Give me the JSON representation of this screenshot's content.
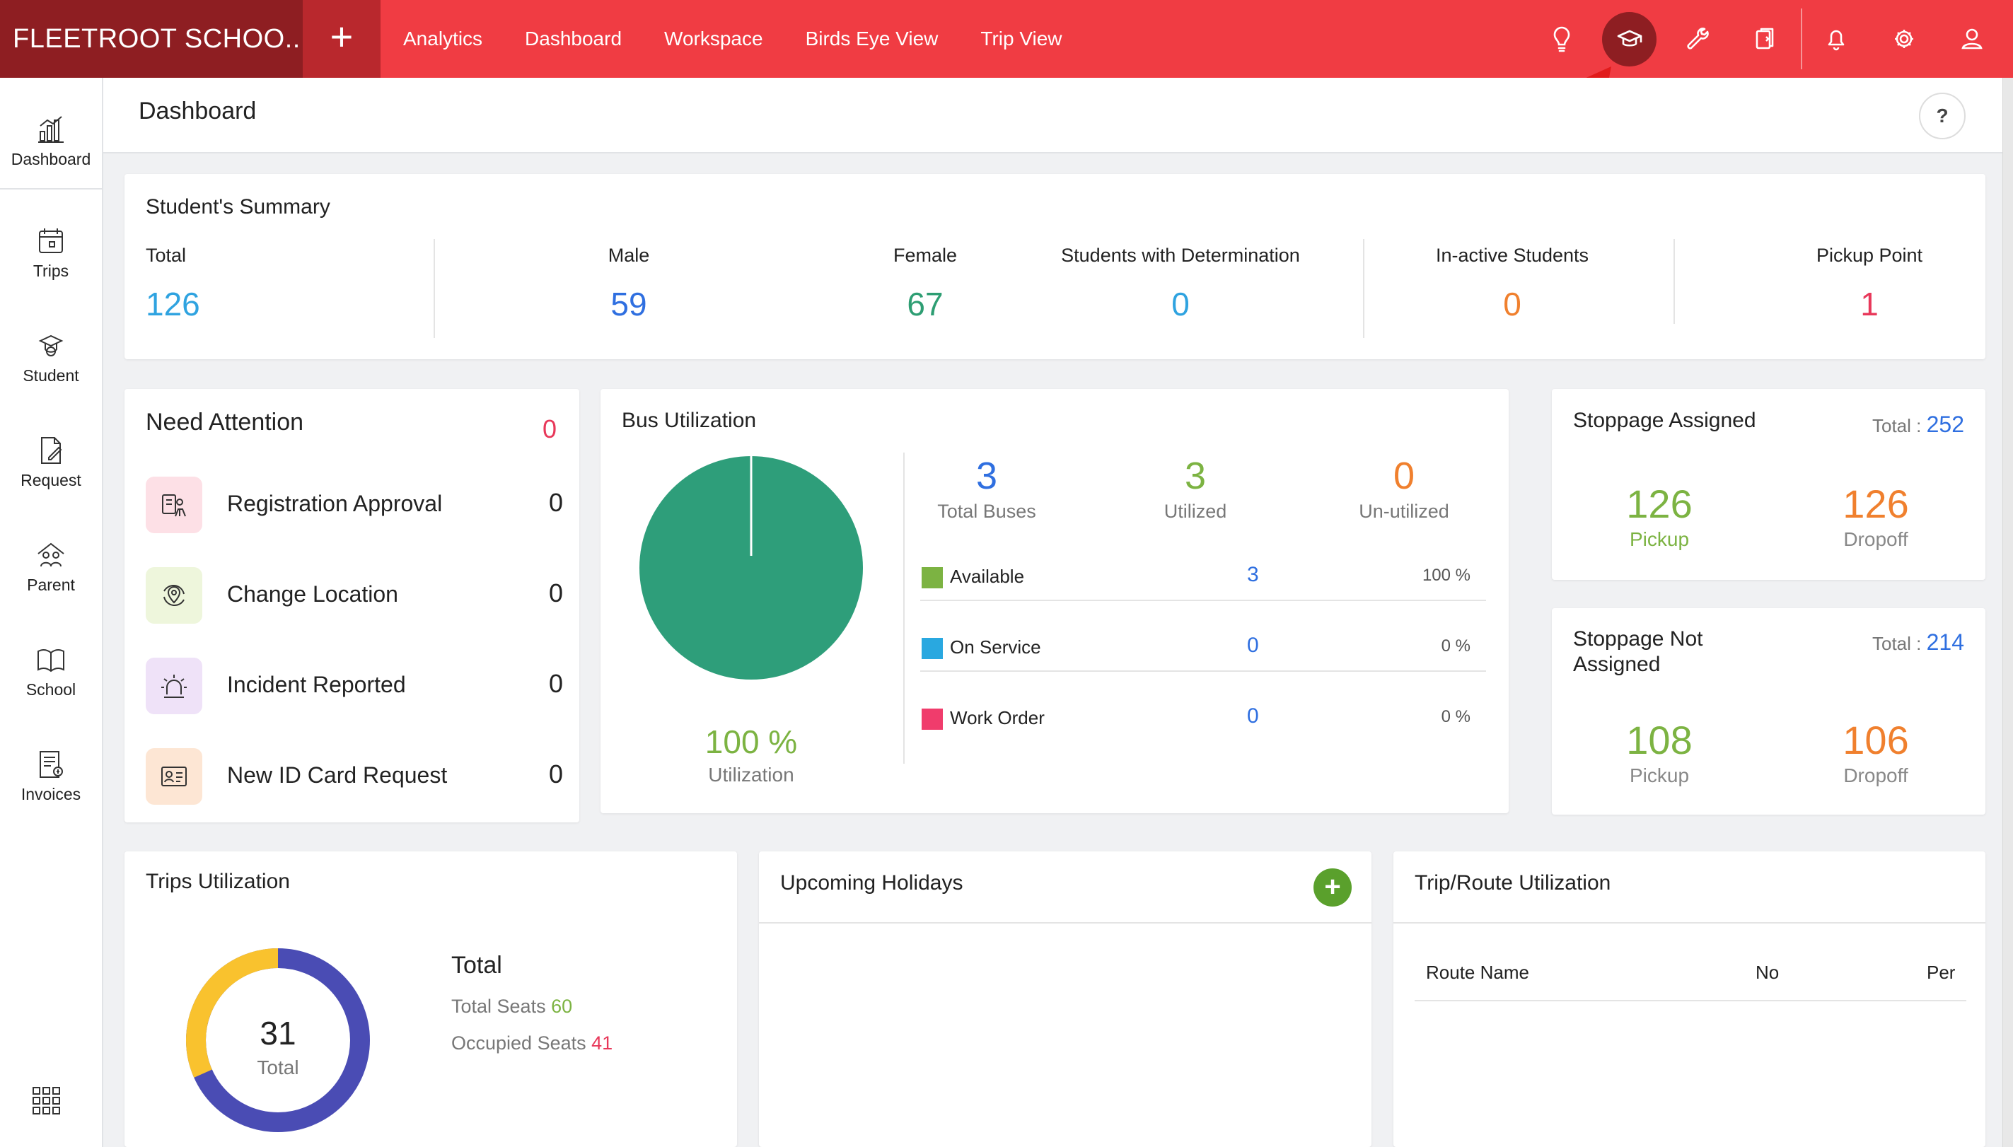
{
  "topbar": {
    "brand": "FLEETROOT SCHOO...",
    "plus": "+",
    "nav": [
      "Analytics",
      "Dashboard",
      "Workspace",
      "Birds Eye View",
      "Trip View"
    ]
  },
  "sidebar": {
    "items": [
      "Dashboard",
      "Trips",
      "Student",
      "Request",
      "Parent",
      "School",
      "Invoices"
    ]
  },
  "header": {
    "title": "Dashboard",
    "help": "?"
  },
  "summary": {
    "title": "Student's Summary",
    "stats": [
      {
        "label": "Total",
        "value": "126",
        "color": "#2fa3e0"
      },
      {
        "label": "Male",
        "value": "59",
        "color": "#2f6fe0"
      },
      {
        "label": "Female",
        "value": "67",
        "color": "#2e9e73"
      },
      {
        "label": "Students with Determination",
        "value": "0",
        "color": "#2fa3e0"
      },
      {
        "label": "In-active Students",
        "value": "0",
        "color": "#f0802e"
      },
      {
        "label": "Pickup Point",
        "value": "1",
        "color": "#e8385a"
      }
    ]
  },
  "attention": {
    "title": "Need Attention",
    "total": "0",
    "rows": [
      {
        "label": "Registration Approval",
        "count": "0"
      },
      {
        "label": "Change Location",
        "count": "0"
      },
      {
        "label": "Incident Reported",
        "count": "0"
      },
      {
        "label": "New ID Card Request",
        "count": "0"
      }
    ]
  },
  "bus": {
    "title": "Bus Utilization",
    "percent": "100 %",
    "percent_label": "Utilization",
    "total": {
      "value": "3",
      "label": "Total Buses"
    },
    "utilized": {
      "value": "3",
      "label": "Utilized"
    },
    "unutilized": {
      "value": "0",
      "label": "Un-utilized"
    },
    "rows": [
      {
        "name": "Available",
        "count": "3",
        "pct": "100 %",
        "color": "#7cb342"
      },
      {
        "name": "On Service",
        "count": "0",
        "pct": "0 %",
        "color": "#29a8e0"
      },
      {
        "name": "Work Order",
        "count": "0",
        "pct": "0 %",
        "color": "#f03c6c"
      }
    ]
  },
  "stoppage_assigned": {
    "title": "Stoppage Assigned",
    "total_label": "Total :",
    "total": "252",
    "pickup": "126",
    "pickup_label": "Pickup",
    "dropoff": "126",
    "dropoff_label": "Dropoff"
  },
  "stoppage_not_assigned": {
    "title_line1": "Stoppage Not",
    "title_line2": "Assigned",
    "total_label": "Total :",
    "total": "214",
    "pickup": "108",
    "pickup_label": "Pickup",
    "dropoff": "106",
    "dropoff_label": "Dropoff"
  },
  "trips": {
    "title": "Trips Utilization",
    "center_value": "31",
    "center_label": "Total",
    "legend_title": "Total",
    "seats_label": "Total Seats",
    "seats": "60",
    "occupied_label": "Occupied Seats",
    "occupied": "41"
  },
  "holidays": {
    "title": "Upcoming Holidays",
    "add": "+"
  },
  "route": {
    "title": "Trip/Route Utilization",
    "columns": [
      "Route Name",
      "No",
      "Per"
    ]
  }
}
